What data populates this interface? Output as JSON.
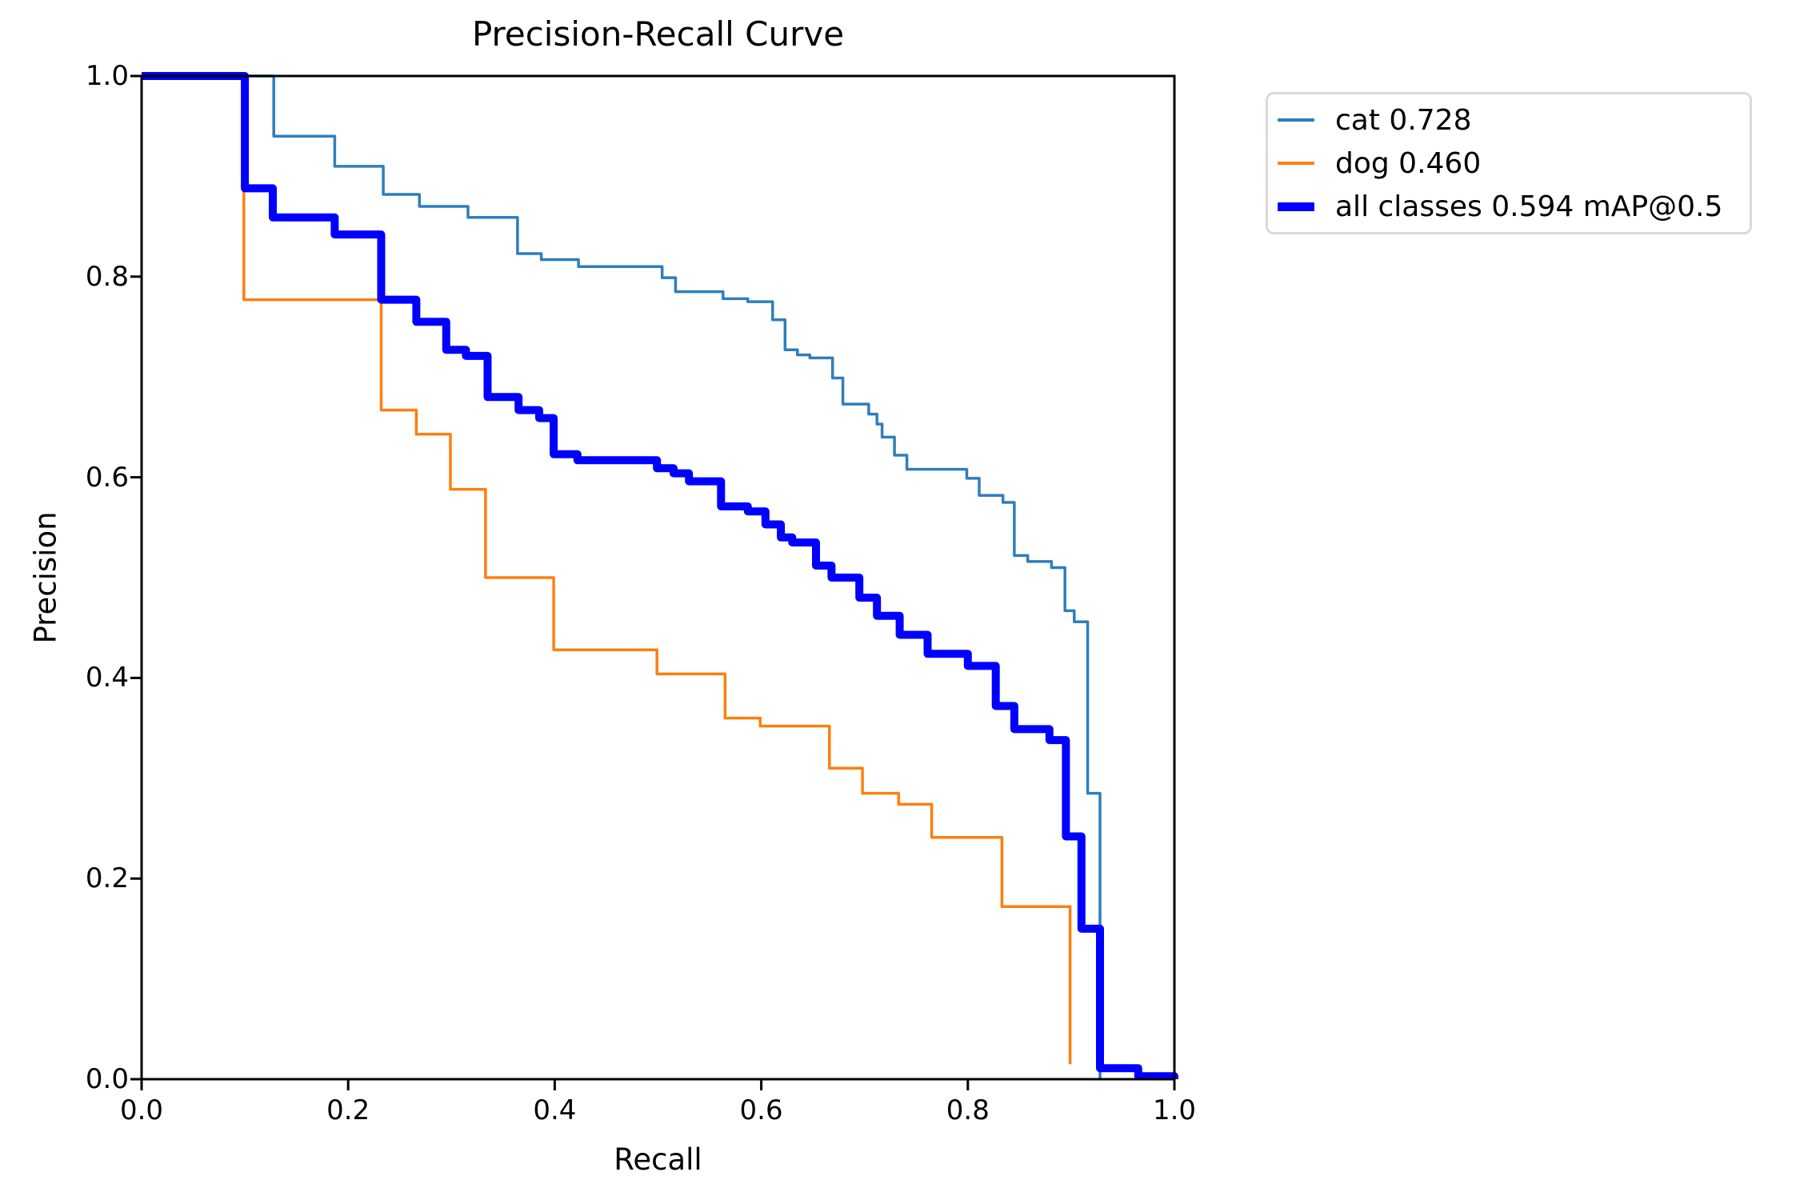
{
  "chart_data": {
    "type": "line",
    "step": "post",
    "title": "Precision-Recall Curve",
    "xlabel": "Recall",
    "ylabel": "Precision",
    "xlim": [
      0.0,
      1.0
    ],
    "ylim": [
      0.0,
      1.0
    ],
    "x_ticks": [
      "0.0",
      "0.2",
      "0.4",
      "0.6",
      "0.8",
      "1.0"
    ],
    "y_ticks": [
      "0.0",
      "0.2",
      "0.4",
      "0.6",
      "0.8",
      "1.0"
    ],
    "grid": false,
    "legend_position": "outside-top-right",
    "series": [
      {
        "name": "cat",
        "label": "cat 0.728",
        "ap": 0.728,
        "color": "#2e7ebd",
        "line_width": 3.5,
        "points": [
          [
            0,
            1
          ],
          [
            0.128,
            0.94
          ],
          [
            0.187,
            0.91
          ],
          [
            0.234,
            0.882
          ],
          [
            0.269,
            0.87
          ],
          [
            0.316,
            0.859
          ],
          [
            0.364,
            0.823
          ],
          [
            0.387,
            0.817
          ],
          [
            0.423,
            0.81
          ],
          [
            0.504,
            0.799
          ],
          [
            0.517,
            0.785
          ],
          [
            0.563,
            0.778
          ],
          [
            0.587,
            0.775
          ],
          [
            0.611,
            0.757
          ],
          [
            0.623,
            0.727
          ],
          [
            0.635,
            0.722
          ],
          [
            0.647,
            0.719
          ],
          [
            0.669,
            0.699
          ],
          [
            0.679,
            0.673
          ],
          [
            0.704,
            0.663
          ],
          [
            0.712,
            0.653
          ],
          [
            0.717,
            0.64
          ],
          [
            0.729,
            0.622
          ],
          [
            0.741,
            0.608
          ],
          [
            0.799,
            0.599
          ],
          [
            0.811,
            0.582
          ],
          [
            0.834,
            0.575
          ],
          [
            0.845,
            0.522
          ],
          [
            0.858,
            0.516
          ],
          [
            0.881,
            0.51
          ],
          [
            0.894,
            0.467
          ],
          [
            0.903,
            0.456
          ],
          [
            0.916,
            0.285
          ],
          [
            0.928,
            0
          ]
        ]
      },
      {
        "name": "dog",
        "label": "dog 0.460",
        "ap": 0.46,
        "color": "#ff7f0e",
        "line_width": 3.5,
        "points": [
          [
            0,
            1
          ],
          [
            0.099,
            0.777
          ],
          [
            0.232,
            0.667
          ],
          [
            0.266,
            0.643
          ],
          [
            0.299,
            0.588
          ],
          [
            0.333,
            0.5
          ],
          [
            0.399,
            0.428
          ],
          [
            0.499,
            0.404
          ],
          [
            0.565,
            0.36
          ],
          [
            0.599,
            0.352
          ],
          [
            0.666,
            0.31
          ],
          [
            0.698,
            0.285
          ],
          [
            0.733,
            0.274
          ],
          [
            0.765,
            0.241
          ],
          [
            0.833,
            0.172
          ],
          [
            0.899,
            0.015
          ]
        ]
      },
      {
        "name": "all_classes",
        "label": "all classes 0.594 mAP@0.5",
        "ap": 0.594,
        "color": "#0000ff",
        "line_width": 10,
        "points": [
          [
            0,
            1
          ],
          [
            0.1,
            0.888
          ],
          [
            0.127,
            0.859
          ],
          [
            0.187,
            0.842
          ],
          [
            0.232,
            0.777
          ],
          [
            0.266,
            0.755
          ],
          [
            0.295,
            0.727
          ],
          [
            0.314,
            0.721
          ],
          [
            0.335,
            0.68
          ],
          [
            0.365,
            0.667
          ],
          [
            0.385,
            0.659
          ],
          [
            0.399,
            0.623
          ],
          [
            0.422,
            0.617
          ],
          [
            0.499,
            0.609
          ],
          [
            0.515,
            0.604
          ],
          [
            0.53,
            0.596
          ],
          [
            0.561,
            0.571
          ],
          [
            0.587,
            0.566
          ],
          [
            0.604,
            0.553
          ],
          [
            0.619,
            0.54
          ],
          [
            0.63,
            0.535
          ],
          [
            0.653,
            0.512
          ],
          [
            0.668,
            0.5
          ],
          [
            0.695,
            0.48
          ],
          [
            0.712,
            0.462
          ],
          [
            0.734,
            0.443
          ],
          [
            0.761,
            0.424
          ],
          [
            0.8,
            0.412
          ],
          [
            0.827,
            0.372
          ],
          [
            0.845,
            0.349
          ],
          [
            0.879,
            0.338
          ],
          [
            0.895,
            0.242
          ],
          [
            0.91,
            0.15
          ],
          [
            0.928,
            0.011
          ],
          [
            0.965,
            0.003
          ],
          [
            1,
            0
          ]
        ]
      }
    ]
  },
  "legend": {
    "entries": [
      {
        "label": "cat 0.728",
        "color": "#2e7ebd",
        "swatch_height": 4
      },
      {
        "label": "dog 0.460",
        "color": "#ff7f0e",
        "swatch_height": 4
      },
      {
        "label": "all classes 0.594 mAP@0.5",
        "color": "#0000ff",
        "swatch_height": 11
      }
    ]
  },
  "colors": {
    "cat": "#2e7ebd",
    "dog": "#ff7f0e",
    "all_classes": "#0000ff",
    "axis": "#000000",
    "legend_border": "#d9d9d9",
    "background": "#ffffff"
  }
}
